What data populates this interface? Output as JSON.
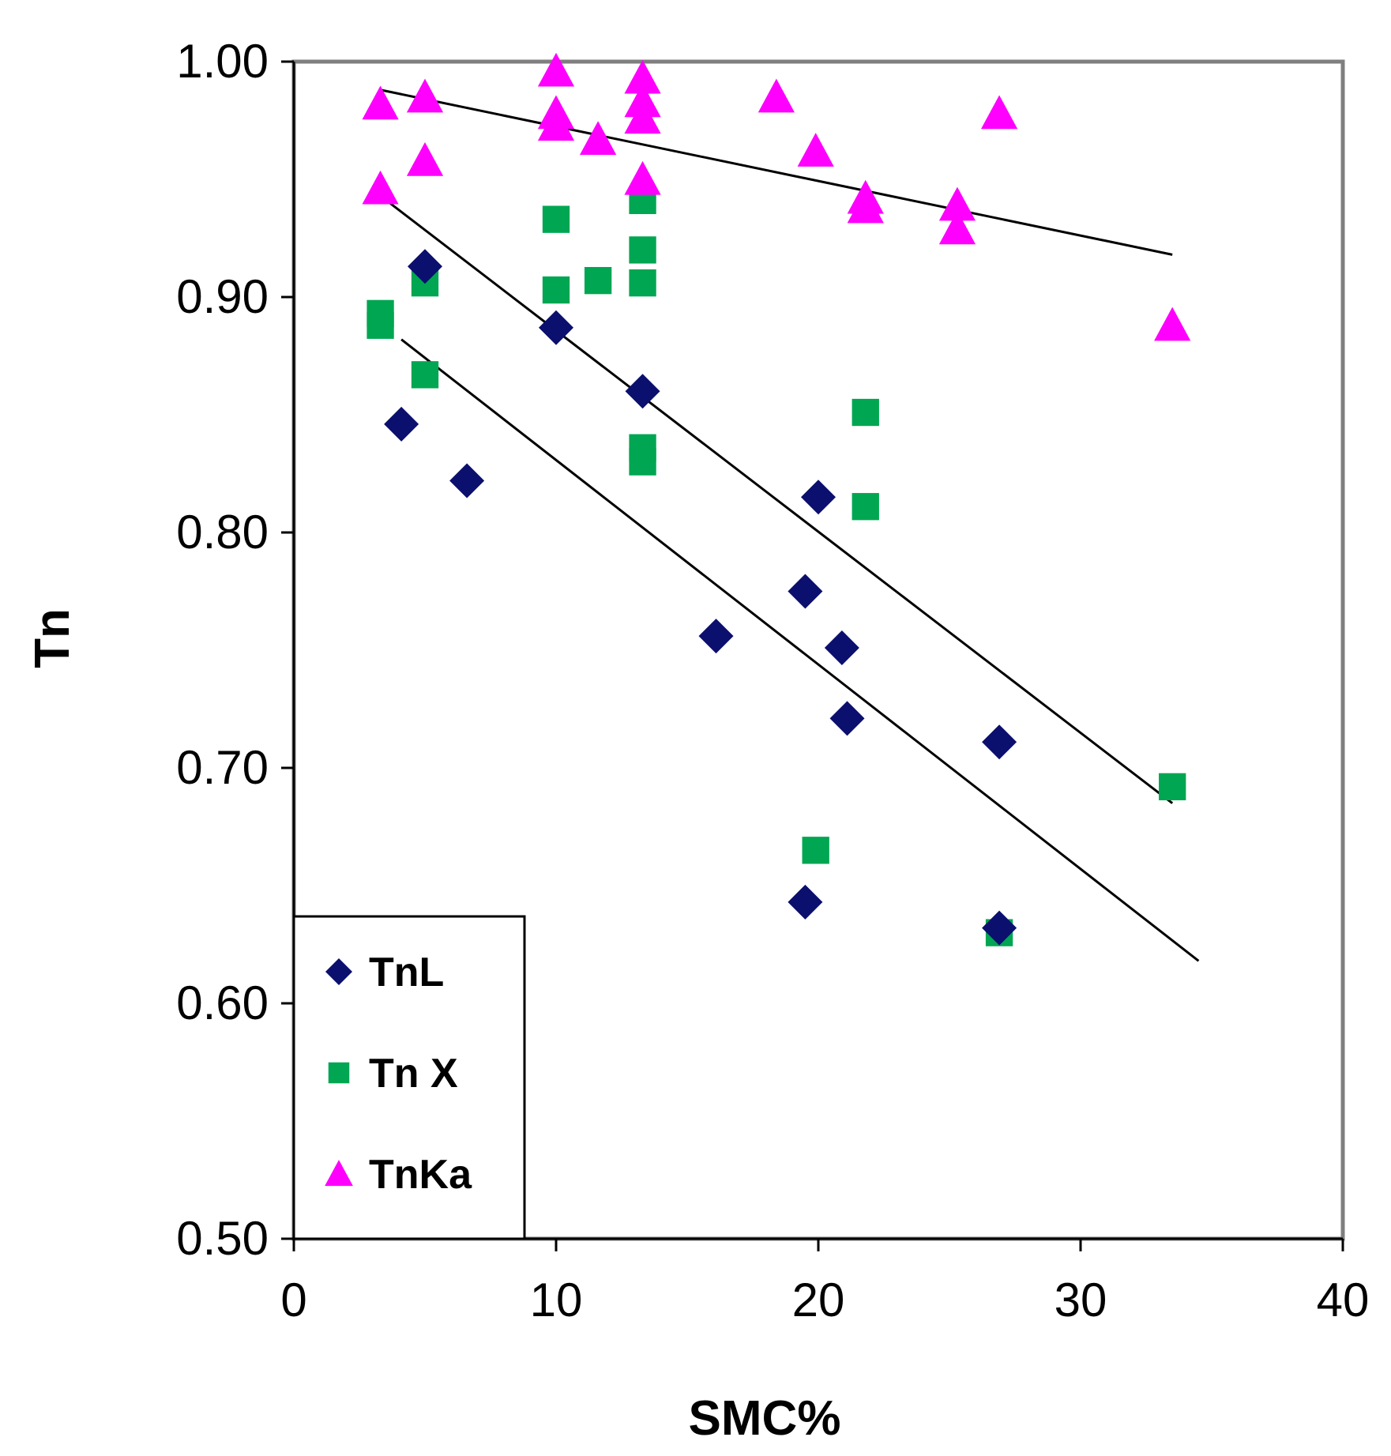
{
  "chart_data": {
    "type": "scatter",
    "xlabel": "SMC%",
    "ylabel": "Tn",
    "xlim": [
      0,
      40
    ],
    "ylim": [
      0.5,
      1.0
    ],
    "x_ticks": [
      "0",
      "10",
      "20",
      "30",
      "40"
    ],
    "y_ticks": [
      "0.50",
      "0.60",
      "0.70",
      "0.80",
      "0.90",
      "1.00"
    ],
    "grid": false,
    "legend_position": "bottom-left",
    "series": [
      {
        "name": "TnL",
        "marker": "diamond",
        "color": "#0b0f6e",
        "points": [
          [
            4.1,
            0.846
          ],
          [
            5.0,
            0.913
          ],
          [
            6.6,
            0.822
          ],
          [
            10.0,
            0.887
          ],
          [
            13.3,
            0.86
          ],
          [
            16.1,
            0.756
          ],
          [
            19.5,
            0.775
          ],
          [
            20.0,
            0.815
          ],
          [
            20.9,
            0.751
          ],
          [
            21.1,
            0.721
          ],
          [
            19.5,
            0.643
          ],
          [
            26.9,
            0.711
          ],
          [
            26.9,
            0.632
          ]
        ]
      },
      {
        "name": "Tn X",
        "marker": "square",
        "color": "#00a651",
        "points": [
          [
            3.3,
            0.893
          ],
          [
            3.3,
            0.888
          ],
          [
            5.0,
            0.906
          ],
          [
            5.0,
            0.867
          ],
          [
            10.0,
            0.933
          ],
          [
            10.0,
            0.903
          ],
          [
            11.6,
            0.907
          ],
          [
            13.3,
            0.941
          ],
          [
            13.3,
            0.92
          ],
          [
            13.3,
            0.906
          ],
          [
            13.3,
            0.836
          ],
          [
            13.3,
            0.83
          ],
          [
            19.9,
            0.665
          ],
          [
            21.8,
            0.851
          ],
          [
            21.8,
            0.811
          ],
          [
            26.9,
            0.63
          ],
          [
            33.5,
            0.692
          ]
        ]
      },
      {
        "name": "TnKa",
        "marker": "triangle",
        "color": "#ff00ff",
        "points": [
          [
            3.3,
            0.982
          ],
          [
            3.3,
            0.946
          ],
          [
            5.0,
            0.985
          ],
          [
            5.0,
            0.958
          ],
          [
            10.0,
            0.996
          ],
          [
            10.0,
            0.978
          ],
          [
            10.0,
            0.973
          ],
          [
            11.6,
            0.967
          ],
          [
            13.3,
            0.993
          ],
          [
            13.3,
            0.983
          ],
          [
            13.3,
            0.976
          ],
          [
            13.3,
            0.95
          ],
          [
            18.4,
            0.985
          ],
          [
            19.9,
            0.962
          ],
          [
            21.8,
            0.942
          ],
          [
            21.8,
            0.938
          ],
          [
            25.3,
            0.939
          ],
          [
            25.3,
            0.929
          ],
          [
            26.9,
            0.978
          ],
          [
            33.5,
            0.888
          ]
        ]
      }
    ],
    "trendlines": [
      {
        "series": "TnKa",
        "x": [
          3.3,
          33.5
        ],
        "y": [
          0.988,
          0.918
        ]
      },
      {
        "series": "Tn X",
        "x": [
          3.3,
          33.5
        ],
        "y": [
          0.943,
          0.685
        ]
      },
      {
        "series": "TnL",
        "x": [
          4.1,
          34.5
        ],
        "y": [
          0.882,
          0.618
        ]
      }
    ]
  }
}
